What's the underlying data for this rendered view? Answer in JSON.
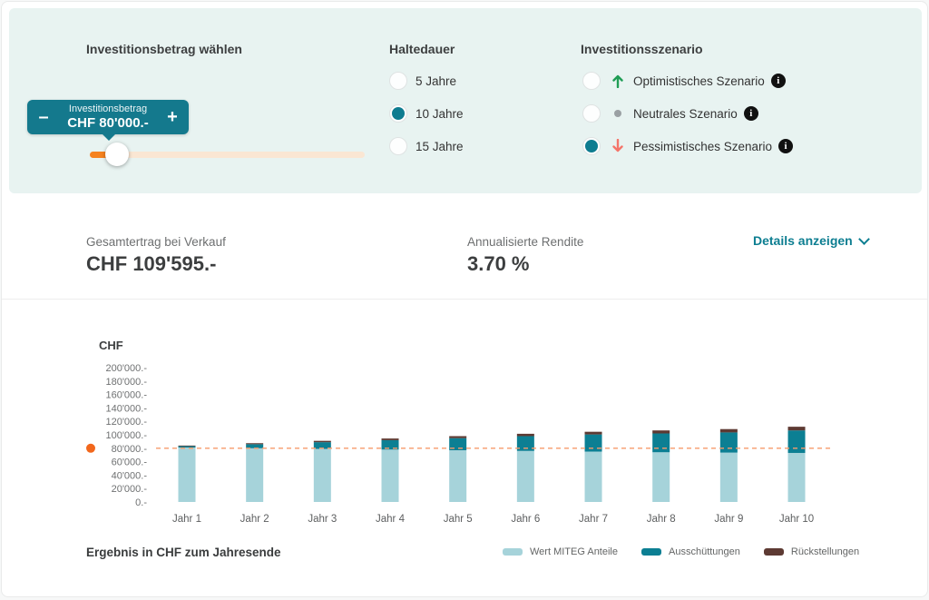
{
  "controls": {
    "investment": {
      "title": "Investitionsbetrag wählen",
      "tooltip_label": "Investitionsbetrag",
      "tooltip_value": "CHF 80'000.-",
      "minus_label": "–",
      "plus_label": "+",
      "position_pct": 10
    },
    "haltedauer": {
      "title": "Haltedauer",
      "options": [
        {
          "label": "5 Jahre",
          "selected": false
        },
        {
          "label": "10 Jahre",
          "selected": true
        },
        {
          "label": "15 Jahre",
          "selected": false
        }
      ]
    },
    "szenario": {
      "title": "Investitionsszenario",
      "options": [
        {
          "label": "Optimistisches Szenario",
          "selected": false,
          "icon": "arrow-up-icon",
          "icon_color": "#1f9d55"
        },
        {
          "label": "Neutrales Szenario",
          "selected": false,
          "icon": "dot-icon",
          "icon_color": "#9aa0a3"
        },
        {
          "label": "Pessimistisches Szenario",
          "selected": true,
          "icon": "arrow-down-icon",
          "icon_color": "#f4756a"
        }
      ],
      "info_glyph": "i"
    }
  },
  "results": {
    "gesamtertrag_label": "Gesamtertrag bei Verkauf",
    "gesamtertrag_value": "CHF 109'595.-",
    "rendite_label": "Annualisierte Rendite",
    "rendite_value": "3.70 %",
    "details_label": "Details anzeigen"
  },
  "chart": {
    "axis_title": "CHF",
    "footer": "Ergebnis in CHF zum Jahresende"
  },
  "chart_data": {
    "type": "bar",
    "stacked": true,
    "title": "Ergebnis in CHF zum Jahresende",
    "ylabel": "CHF",
    "xlabel": "",
    "ylim": [
      0,
      200000
    ],
    "ytick_step": 20000,
    "ytick_labels": [
      "200'000.-",
      "180'000.-",
      "160'000.-",
      "140'000.-",
      "120'000.-",
      "100'000.-",
      "80'000.-",
      "60'000.-",
      "40'000.-",
      "20'000.-",
      "0.-"
    ],
    "categories": [
      "Jahr 1",
      "Jahr 2",
      "Jahr 3",
      "Jahr 4",
      "Jahr 5",
      "Jahr 6",
      "Jahr 7",
      "Jahr 8",
      "Jahr 9",
      "Jahr 10"
    ],
    "series": [
      {
        "name": "Wert MITEG Anteile",
        "color": "#a6d3da",
        "values": [
          81000,
          80000,
          79000,
          78000,
          77000,
          76000,
          75000,
          74000,
          73500,
          73000
        ]
      },
      {
        "name": "Ausschüttungen",
        "color": "#0c7f93",
        "values": [
          2000,
          6000,
          10000,
          14000,
          18000,
          22000,
          25500,
          28000,
          30000,
          33500
        ]
      },
      {
        "name": "Rückstellungen",
        "color": "#5d3a33",
        "values": [
          1000,
          1500,
          2000,
          2500,
          3000,
          3500,
          4000,
          4500,
          5000,
          5500
        ]
      }
    ],
    "reference_line": {
      "value": 80000,
      "color": "#f79b6b",
      "style": "dashed",
      "marker_color": "#f2671c"
    },
    "grid": false,
    "legend_position": "bottom-right"
  },
  "colors": {
    "primary_teal": "#0e7c90",
    "mint_background": "#e8f3f1",
    "slider_orange": "#f5821f",
    "slider_track": "#fae6d3"
  }
}
